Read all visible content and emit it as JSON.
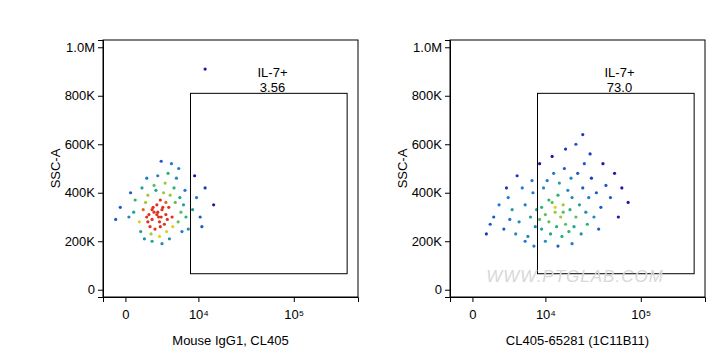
{
  "chart_data": [
    {
      "type": "scatter",
      "log": "x",
      "grid": false,
      "xlabel": "Mouse IgG1, CL405",
      "ylabel": "SSC-A",
      "xlim": [
        -1600,
        420000
      ],
      "ylim": [
        -30000,
        1030000
      ],
      "xticks": [
        0,
        {
          "value": 10000,
          "label": "10⁴"
        },
        {
          "value": 100000,
          "label": "10⁵"
        }
      ],
      "yticks": [
        0,
        {
          "value": 200000,
          "label": "200K"
        },
        {
          "value": 400000,
          "label": "400K"
        },
        {
          "value": 600000,
          "label": "600K"
        },
        {
          "value": 800000,
          "label": "800K"
        },
        {
          "value": 1000000,
          "label": "1.0M"
        }
      ],
      "gate": {
        "name": "IL-7+",
        "value": 3.56,
        "x": [
          8000,
          330000
        ],
        "y": [
          66000,
          810000
        ]
      },
      "x": [
        1500,
        2200,
        2800,
        3200,
        1800,
        2500,
        3600,
        1200,
        2000,
        3000,
        2600,
        1700,
        3400,
        2300,
        4000,
        1400,
        2900,
        2100,
        3800,
        2700,
        900,
        500,
        4500,
        5000,
        4200,
        3300,
        2400,
        1600,
        600,
        200,
        -300,
        -600,
        1000,
        1900,
        2800,
        3700,
        4600,
        5500,
        6000,
        5800,
        4800,
        3500,
        2200,
        1100,
        300,
        6500,
        7000,
        6800,
        5200,
        3900,
        2600,
        1500,
        2000,
        3100,
        4100,
        1300,
        7500,
        6200,
        5600,
        4400,
        3000,
        8500,
        9500,
        10500,
        12000,
        11000,
        15000,
        9000,
        2500,
        3100,
        2000,
        2900,
        3600,
        1600,
        12000
      ],
      "values": [
        300000,
        320000,
        280000,
        340000,
        260000,
        350000,
        310000,
        330000,
        290000,
        300000,
        320000,
        310000,
        270000,
        250000,
        340000,
        360000,
        370000,
        340000,
        290000,
        300000,
        280000,
        320000,
        300000,
        360000,
        390000,
        400000,
        410000,
        390000,
        370000,
        300000,
        340000,
        290000,
        240000,
        230000,
        220000,
        240000,
        260000,
        280000,
        320000,
        380000,
        420000,
        440000,
        430000,
        420000,
        400000,
        350000,
        300000,
        410000,
        460000,
        480000,
        470000,
        460000,
        200000,
        190000,
        210000,
        210000,
        250000,
        240000,
        500000,
        520000,
        530000,
        330000,
        380000,
        300000,
        420000,
        260000,
        350000,
        470000,
        310000,
        330000,
        330000,
        260000,
        360000,
        280000,
        910000
      ]
    },
    {
      "type": "scatter",
      "log": "x",
      "grid": false,
      "xlabel": "CL405-65281 (1C11B11)",
      "ylabel": "SSC-A",
      "xlim": [
        -1600,
        420000
      ],
      "ylim": [
        -30000,
        1030000
      ],
      "xticks": [
        0,
        {
          "value": 10000,
          "label": "10⁴"
        },
        {
          "value": 100000,
          "label": "10⁵"
        }
      ],
      "yticks": [
        0,
        {
          "value": 200000,
          "label": "200K"
        },
        {
          "value": 400000,
          "label": "400K"
        },
        {
          "value": 600000,
          "label": "600K"
        },
        {
          "value": 800000,
          "label": "800K"
        },
        {
          "value": 1000000,
          "label": "1.0M"
        }
      ],
      "gate": {
        "name": "IL-7+",
        "value": 73,
        "value_label": "73.0",
        "x": [
          8000,
          330000
        ],
        "y": [
          66000,
          810000
        ]
      },
      "annotations": [
        {
          "text": "WWW.PTGLAB.COM"
        }
      ],
      "x": [
        1500,
        2500,
        3500,
        4500,
        5500,
        6500,
        7500,
        3000,
        5000,
        7000,
        2000,
        4000,
        6000,
        1200,
        5500,
        3200,
        7800,
        6800,
        4200,
        2800,
        900,
        7200,
        8500,
        9000,
        10000,
        11000,
        12000,
        13000,
        14000,
        15000,
        16000,
        17000,
        18000,
        19000,
        20000,
        22000,
        24000,
        26000,
        28000,
        30000,
        9500,
        10500,
        12500,
        14500,
        16500,
        19500,
        23000,
        27000,
        32000,
        36000,
        40000,
        45000,
        50000,
        9000,
        11500,
        13500,
        15500,
        18500,
        21000,
        25000,
        29000,
        34000,
        38000,
        10000,
        14000,
        20000,
        12000,
        17000,
        22000,
        31000,
        42000,
        55000,
        65000,
        75000,
        60000,
        8500,
        26000,
        11000,
        13000,
        16000
      ],
      "values": [
        300000,
        250000,
        330000,
        280000,
        350000,
        300000,
        260000,
        380000,
        420000,
        400000,
        350000,
        230000,
        220000,
        270000,
        200000,
        290000,
        330000,
        450000,
        470000,
        420000,
        230000,
        180000,
        290000,
        340000,
        310000,
        280000,
        360000,
        320000,
        390000,
        300000,
        350000,
        270000,
        410000,
        330000,
        380000,
        300000,
        350000,
        420000,
        320000,
        380000,
        420000,
        450000,
        480000,
        440000,
        500000,
        460000,
        480000,
        520000,
        460000,
        400000,
        340000,
        430000,
        380000,
        250000,
        230000,
        260000,
        220000,
        240000,
        260000,
        230000,
        270000,
        300000,
        250000,
        200000,
        180000,
        190000,
        550000,
        580000,
        600000,
        560000,
        520000,
        480000,
        420000,
        360000,
        300000,
        520000,
        640000,
        370000,
        340000,
        320000
      ]
    }
  ]
}
